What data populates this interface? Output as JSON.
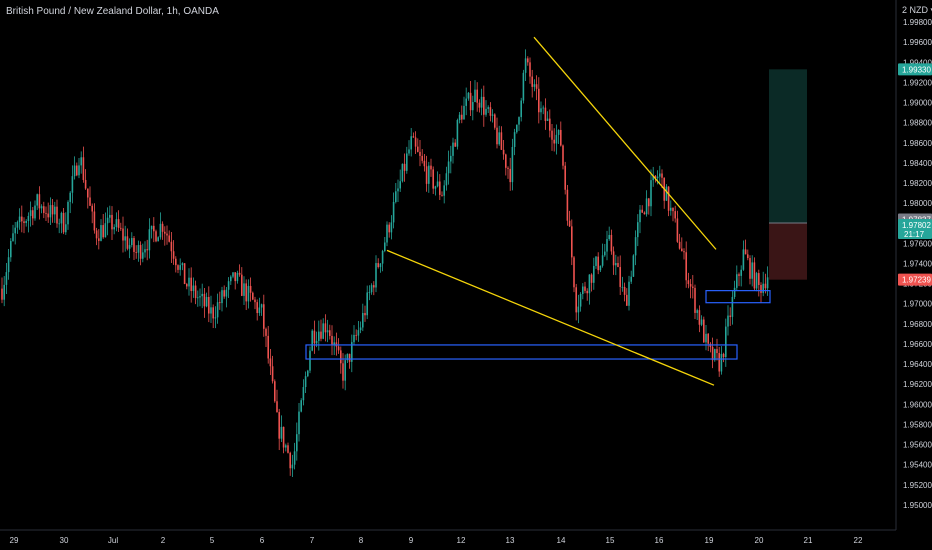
{
  "header": {
    "title": "British Pound / New Zealand Dollar, 1h, OANDA",
    "currency_label": "2 NZD ▾"
  },
  "chart_data": {
    "type": "candlestick",
    "title": "British Pound / New Zealand Dollar, 1h, OANDA",
    "ylim": [
      1.948,
      1.999
    ],
    "y_ticks": [
      "1.99800",
      "1.99600",
      "1.99400",
      "1.99200",
      "1.99000",
      "1.98800",
      "1.98600",
      "1.98400",
      "1.98200",
      "1.98000",
      "1.97600",
      "1.97400",
      "1.97200",
      "1.97000",
      "1.96800",
      "1.96600",
      "1.96400",
      "1.96200",
      "1.96000",
      "1.95800",
      "1.95600",
      "1.95400",
      "1.95200",
      "1.95000"
    ],
    "x_ticks": [
      "29",
      "30",
      "Jul",
      "2",
      "5",
      "6",
      "7",
      "8",
      "9",
      "12",
      "13",
      "14",
      "15",
      "16",
      "19",
      "20",
      "21",
      "22"
    ],
    "price_badges": {
      "target": "1.99330",
      "current": "1.97837",
      "entry": "1.97802",
      "countdown": "21:17",
      "stop": "1.97239"
    },
    "colors": {
      "up": "#26a69a",
      "down": "#ef5350",
      "trendline": "#f5d50a",
      "zone": "#2962ff",
      "target_fill": "#0b2a26",
      "stop_fill": "#3a1516",
      "background": "#000000"
    },
    "trendlines": [
      {
        "name": "upper",
        "from": [
          "13",
          1.9965
        ],
        "to": [
          "19",
          1.9754
        ]
      },
      {
        "name": "lower",
        "from": [
          "8",
          1.9753
        ],
        "to": [
          "19",
          1.9619
        ]
      }
    ],
    "zones": [
      {
        "name": "support-zone",
        "from": "7",
        "to": "19",
        "high": 1.9659,
        "low": 1.9645
      },
      {
        "name": "breakout-zone",
        "from": "19",
        "to": "20",
        "high": 1.9713,
        "low": 1.9701
      }
    ],
    "position": {
      "entry": 1.97802,
      "target": 1.9933,
      "stop": 1.97239
    },
    "key_points": [
      {
        "x": "28",
        "price": 1.9715
      },
      {
        "x": "29",
        "price": 1.977
      },
      {
        "x": "29",
        "price": 1.98
      },
      {
        "x": "30",
        "price": 1.978
      },
      {
        "x": "30",
        "price": 1.985
      },
      {
        "x": "30",
        "price": 1.977
      },
      {
        "x": "Jul",
        "price": 1.978
      },
      {
        "x": "Jul",
        "price": 1.975
      },
      {
        "x": "2",
        "price": 1.978
      },
      {
        "x": "2",
        "price": 1.972
      },
      {
        "x": "5",
        "price": 1.969
      },
      {
        "x": "5",
        "price": 1.9725
      },
      {
        "x": "6",
        "price": 1.969
      },
      {
        "x": "6",
        "price": 1.958
      },
      {
        "x": "6",
        "price": 1.954
      },
      {
        "x": "7",
        "price": 1.967
      },
      {
        "x": "7",
        "price": 1.968
      },
      {
        "x": "7",
        "price": 1.963
      },
      {
        "x": "8",
        "price": 1.968
      },
      {
        "x": "8",
        "price": 1.976
      },
      {
        "x": "9",
        "price": 1.986
      },
      {
        "x": "9",
        "price": 1.983
      },
      {
        "x": "9",
        "price": 1.981
      },
      {
        "x": "12",
        "price": 1.989
      },
      {
        "x": "12",
        "price": 1.991
      },
      {
        "x": "12",
        "price": 1.988
      },
      {
        "x": "13",
        "price": 1.983
      },
      {
        "x": "13",
        "price": 1.994
      },
      {
        "x": "13",
        "price": 1.989
      },
      {
        "x": "14",
        "price": 1.986
      },
      {
        "x": "14",
        "price": 1.97
      },
      {
        "x": "14",
        "price": 1.973
      },
      {
        "x": "15",
        "price": 1.976
      },
      {
        "x": "15",
        "price": 1.97
      },
      {
        "x": "15",
        "price": 1.979
      },
      {
        "x": "16",
        "price": 1.983
      },
      {
        "x": "16",
        "price": 1.978
      },
      {
        "x": "16",
        "price": 1.972
      },
      {
        "x": "19",
        "price": 1.965
      },
      {
        "x": "19",
        "price": 1.964
      },
      {
        "x": "19",
        "price": 1.97
      },
      {
        "x": "19",
        "price": 1.975
      },
      {
        "x": "20",
        "price": 1.9715
      },
      {
        "x": "20",
        "price": 1.974
      },
      {
        "x": "20",
        "price": 1.97837
      }
    ]
  }
}
